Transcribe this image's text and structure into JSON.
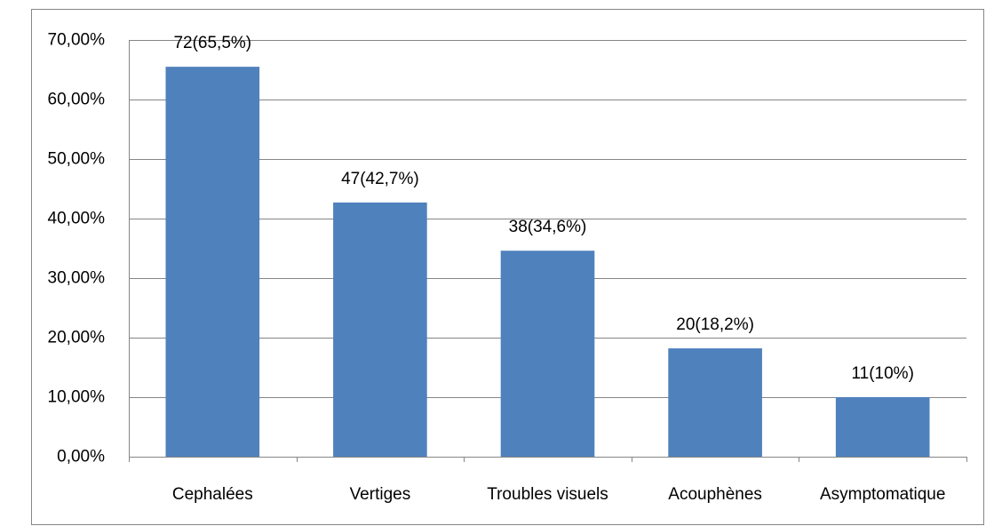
{
  "chart_data": {
    "type": "bar",
    "categories": [
      "Cephalées",
      "Vertiges",
      "Troubles visuels",
      "Acouphènes",
      "Asymptomatique"
    ],
    "values": [
      65.5,
      42.7,
      34.6,
      18.2,
      10
    ],
    "value_labels": [
      "72(65,5%)",
      "47(42,7%)",
      "38(34,6%)",
      "20(18,2%)",
      "11(10%)"
    ],
    "color": "#4f81bd",
    "ylim": [
      0,
      70
    ],
    "yticks": [
      {
        "value": 0,
        "label": "0,00%"
      },
      {
        "value": 10,
        "label": "10,00%"
      },
      {
        "value": 20,
        "label": "20,00%"
      },
      {
        "value": 30,
        "label": "30,00%"
      },
      {
        "value": 40,
        "label": "40,00%"
      },
      {
        "value": 50,
        "label": "50,00%"
      },
      {
        "value": 60,
        "label": "60,00%"
      },
      {
        "value": 70,
        "label": "70,00%"
      }
    ],
    "grid": true
  }
}
